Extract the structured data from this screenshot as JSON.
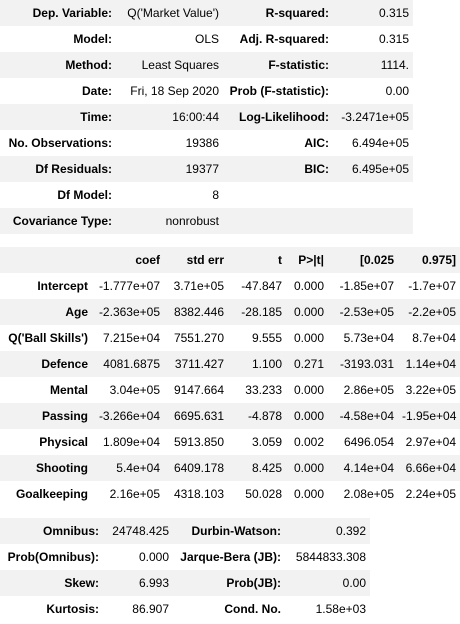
{
  "summary": [
    {
      "l1": "Dep. Variable:",
      "v1": "Q('Market Value')",
      "l2": "R-squared:",
      "v2": "0.315"
    },
    {
      "l1": "Model:",
      "v1": "OLS",
      "l2": "Adj. R-squared:",
      "v2": "0.315"
    },
    {
      "l1": "Method:",
      "v1": "Least Squares",
      "l2": "F-statistic:",
      "v2": "1114."
    },
    {
      "l1": "Date:",
      "v1": "Fri, 18 Sep 2020",
      "l2": "Prob (F-statistic):",
      "v2": "0.00"
    },
    {
      "l1": "Time:",
      "v1": "16:00:44",
      "l2": "Log-Likelihood:",
      "v2": "-3.2471e+05"
    },
    {
      "l1": "No. Observations:",
      "v1": "19386",
      "l2": "AIC:",
      "v2": "6.494e+05"
    },
    {
      "l1": "Df Residuals:",
      "v1": "19377",
      "l2": "BIC:",
      "v2": "6.495e+05"
    },
    {
      "l1": "Df Model:",
      "v1": "8",
      "l2": "",
      "v2": ""
    },
    {
      "l1": "Covariance Type:",
      "v1": "nonrobust",
      "l2": "",
      "v2": ""
    }
  ],
  "coef": {
    "headers": [
      "",
      "coef",
      "std err",
      "t",
      "P>|t|",
      "[0.025",
      "0.975]"
    ],
    "rows": [
      [
        "Intercept",
        "-1.777e+07",
        "3.71e+05",
        "-47.847",
        "0.000",
        "-1.85e+07",
        "-1.7e+07"
      ],
      [
        "Age",
        "-2.363e+05",
        "8382.446",
        "-28.185",
        "0.000",
        "-2.53e+05",
        "-2.2e+05"
      ],
      [
        "Q('Ball Skills')",
        "7.215e+04",
        "7551.270",
        "9.555",
        "0.000",
        "5.73e+04",
        "8.7e+04"
      ],
      [
        "Defence",
        "4081.6875",
        "3711.427",
        "1.100",
        "0.271",
        "-3193.031",
        "1.14e+04"
      ],
      [
        "Mental",
        "3.04e+05",
        "9147.664",
        "33.233",
        "0.000",
        "2.86e+05",
        "3.22e+05"
      ],
      [
        "Passing",
        "-3.266e+04",
        "6695.631",
        "-4.878",
        "0.000",
        "-4.58e+04",
        "-1.95e+04"
      ],
      [
        "Physical",
        "1.809e+04",
        "5913.850",
        "3.059",
        "0.002",
        "6496.054",
        "2.97e+04"
      ],
      [
        "Shooting",
        "5.4e+04",
        "6409.178",
        "8.425",
        "0.000",
        "4.14e+04",
        "6.66e+04"
      ],
      [
        "Goalkeeping",
        "2.16e+05",
        "4318.103",
        "50.028",
        "0.000",
        "2.08e+05",
        "2.24e+05"
      ]
    ]
  },
  "diagnostics": [
    {
      "l1": "Omnibus:",
      "v1": "24748.425",
      "l2": "Durbin-Watson:",
      "v2": "0.392"
    },
    {
      "l1": "Prob(Omnibus):",
      "v1": "0.000",
      "l2": "Jarque-Bera (JB):",
      "v2": "5844833.308"
    },
    {
      "l1": "Skew:",
      "v1": "6.993",
      "l2": "Prob(JB):",
      "v2": "0.00"
    },
    {
      "l1": "Kurtosis:",
      "v1": "86.907",
      "l2": "Cond. No.",
      "v2": "1.58e+03"
    }
  ]
}
